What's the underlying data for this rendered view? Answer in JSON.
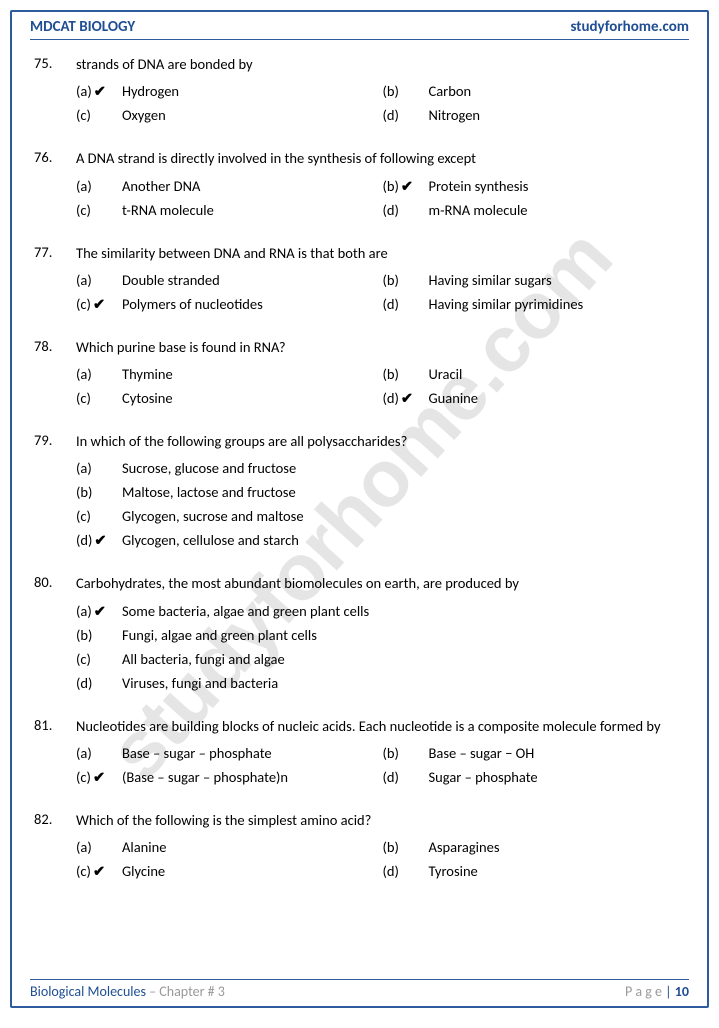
{
  "header": {
    "left": "MDCAT BIOLOGY",
    "right": "studyforhome.com"
  },
  "watermark": "studyforhome.com",
  "footer": {
    "chapter_label": "Biological Molecules",
    "chapter_sep": " – ",
    "chapter_num": "Chapter # 3",
    "page_label": "P a g e ",
    "page_bar": " | ",
    "page_num": "10"
  },
  "colors": {
    "accent": "#1f4e92",
    "muted": "#999999"
  },
  "questions": [
    {
      "num": "75.",
      "text": "strands of DNA are bonded by",
      "layout": "two-col",
      "options": [
        {
          "letter": "(a)",
          "text": "Hydrogen",
          "correct": true
        },
        {
          "letter": "(b)",
          "text": "Carbon",
          "correct": false
        },
        {
          "letter": "(c)",
          "text": "Oxygen",
          "correct": false
        },
        {
          "letter": "(d)",
          "text": "Nitrogen",
          "correct": false
        }
      ]
    },
    {
      "num": "76.",
      "text": "A DNA strand is directly involved in the synthesis of following except",
      "layout": "two-col",
      "options": [
        {
          "letter": "(a)",
          "text": "Another DNA",
          "correct": false
        },
        {
          "letter": "(b)",
          "text": "Protein synthesis",
          "correct": true
        },
        {
          "letter": "(c)",
          "text": "t-RNA molecule",
          "correct": false
        },
        {
          "letter": "(d)",
          "text": "m-RNA molecule",
          "correct": false
        }
      ]
    },
    {
      "num": "77.",
      "text": "The similarity between DNA and RNA is that both are",
      "layout": "two-col",
      "options": [
        {
          "letter": "(a)",
          "text": "Double stranded",
          "correct": false
        },
        {
          "letter": "(b)",
          "text": "Having similar sugars",
          "correct": false
        },
        {
          "letter": "(c)",
          "text": "Polymers of nucleotides",
          "correct": true
        },
        {
          "letter": "(d)",
          "text": "Having similar pyrimidines",
          "correct": false
        }
      ]
    },
    {
      "num": "78.",
      "text": "Which purine base is found in RNA?",
      "layout": "two-col",
      "options": [
        {
          "letter": "(a)",
          "text": "Thymine",
          "correct": false
        },
        {
          "letter": "(b)",
          "text": "Uracil",
          "correct": false
        },
        {
          "letter": "(c)",
          "text": "Cytosine",
          "correct": false
        },
        {
          "letter": "(d)",
          "text": "Guanine",
          "correct": true
        }
      ]
    },
    {
      "num": "79.",
      "text": "In which of the following groups are all polysaccharides?",
      "layout": "one-col",
      "options": [
        {
          "letter": "(a)",
          "text": "Sucrose, glucose and fructose",
          "correct": false
        },
        {
          "letter": "(b)",
          "text": "Maltose, lactose and fructose",
          "correct": false
        },
        {
          "letter": "(c)",
          "text": "Glycogen, sucrose and maltose",
          "correct": false
        },
        {
          "letter": "(d)",
          "text": "Glycogen, cellulose and starch",
          "correct": true
        }
      ]
    },
    {
      "num": "80.",
      "text": "Carbohydrates, the most abundant biomolecules on earth, are produced by",
      "layout": "one-col",
      "options": [
        {
          "letter": "(a)",
          "text": "Some bacteria, algae and green plant cells",
          "correct": true
        },
        {
          "letter": "(b)",
          "text": "Fungi, algae and green plant cells",
          "correct": false
        },
        {
          "letter": "(c)",
          "text": "All bacteria, fungi and algae",
          "correct": false
        },
        {
          "letter": "(d)",
          "text": "Viruses, fungi and bacteria",
          "correct": false
        }
      ]
    },
    {
      "num": "81.",
      "text": "Nucleotides are building blocks of nucleic acids. Each nucleotide is a composite molecule formed by",
      "layout": "two-col",
      "options": [
        {
          "letter": "(a)",
          "text": "Base – sugar – phosphate",
          "correct": false
        },
        {
          "letter": "(b)",
          "text": "Base – sugar − OH",
          "correct": false
        },
        {
          "letter": "(c)",
          "text": "(Base – sugar – phosphate)n",
          "correct": true
        },
        {
          "letter": "(d)",
          "text": "Sugar – phosphate",
          "correct": false
        }
      ]
    },
    {
      "num": "82.",
      "text": "Which of the following is the simplest amino acid?",
      "layout": "two-col",
      "options": [
        {
          "letter": "(a)",
          "text": "Alanine",
          "correct": false
        },
        {
          "letter": "(b)",
          "text": "Asparagines",
          "correct": false
        },
        {
          "letter": "(c)",
          "text": "Glycine",
          "correct": true
        },
        {
          "letter": "(d)",
          "text": "Tyrosine",
          "correct": false
        }
      ]
    }
  ]
}
